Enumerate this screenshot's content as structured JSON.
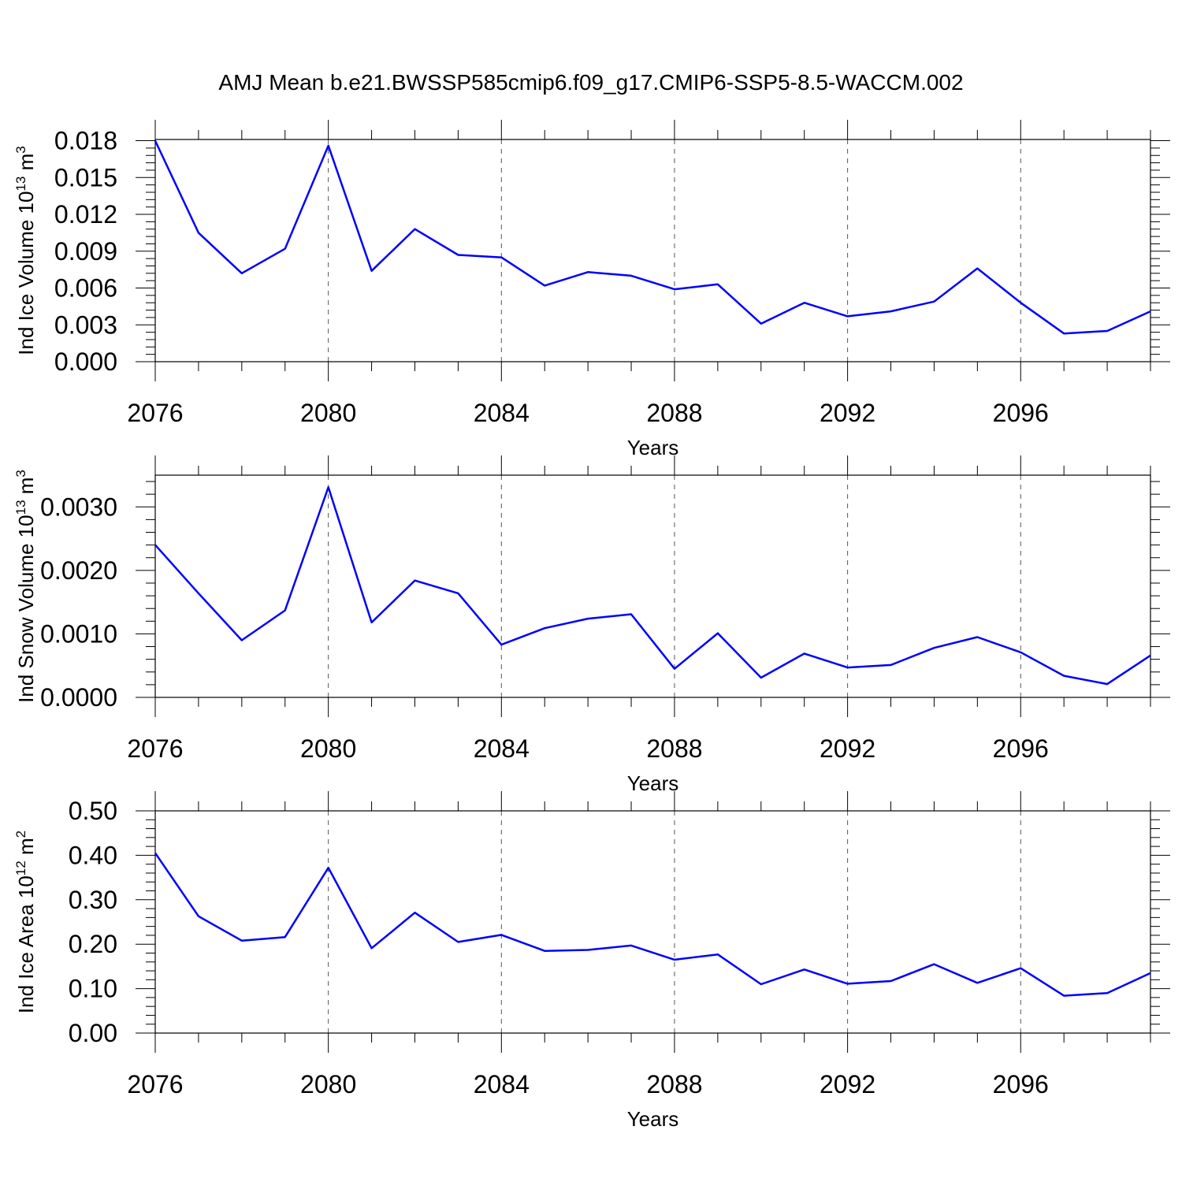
{
  "title": "AMJ Mean b.e21.BWSSP585cmip6.f09_g17.CMIP6-SSP5-8.5-WACCM.002",
  "line_color": "#0000ff",
  "chart_data": [
    {
      "type": "line",
      "name": "ice-volume",
      "ylabel_main": "Ind Ice Volume 10",
      "ylabel_exp": "13",
      "ylabel_tail": " m",
      "ylabel_exp2": "3",
      "xlabel": "Years",
      "xlim": [
        2076,
        2099
      ],
      "ylim": [
        0.0,
        0.0181
      ],
      "x_ticks": [
        2076,
        2080,
        2084,
        2088,
        2092,
        2096
      ],
      "x_tick_labels": [
        "2076",
        "2080",
        "2084",
        "2088",
        "2092",
        "2096"
      ],
      "y_ticks": [
        0.0,
        0.003,
        0.006,
        0.009,
        0.012,
        0.015,
        0.018
      ],
      "y_tick_labels": [
        "0.000",
        "0.003",
        "0.006",
        "0.009",
        "0.012",
        "0.015",
        "0.018"
      ],
      "x": [
        2076,
        2077,
        2078,
        2079,
        2080,
        2081,
        2082,
        2083,
        2084,
        2085,
        2086,
        2087,
        2088,
        2089,
        2090,
        2091,
        2092,
        2093,
        2094,
        2095,
        2096,
        2097,
        2098,
        2099
      ],
      "y": [
        0.018,
        0.0105,
        0.0072,
        0.0092,
        0.0176,
        0.0074,
        0.0108,
        0.0087,
        0.0085,
        0.0062,
        0.0073,
        0.007,
        0.0059,
        0.0063,
        0.0031,
        0.0048,
        0.0037,
        0.0041,
        0.0049,
        0.0076,
        0.0048,
        0.0023,
        0.0025,
        0.0041
      ]
    },
    {
      "type": "line",
      "name": "snow-volume",
      "ylabel_main": "Ind Snow Volume 10",
      "ylabel_exp": "13",
      "ylabel_tail": " m",
      "ylabel_exp2": "3",
      "xlabel": "Years",
      "xlim": [
        2076,
        2099
      ],
      "ylim": [
        0.0,
        0.0035
      ],
      "x_ticks": [
        2076,
        2080,
        2084,
        2088,
        2092,
        2096
      ],
      "x_tick_labels": [
        "2076",
        "2080",
        "2084",
        "2088",
        "2092",
        "2096"
      ],
      "y_ticks": [
        0.0,
        0.001,
        0.002,
        0.003
      ],
      "y_tick_labels": [
        "0.0000",
        "0.0010",
        "0.0020",
        "0.0030"
      ],
      "x": [
        2076,
        2077,
        2078,
        2079,
        2080,
        2081,
        2082,
        2083,
        2084,
        2085,
        2086,
        2087,
        2088,
        2089,
        2090,
        2091,
        2092,
        2093,
        2094,
        2095,
        2096,
        2097,
        2098,
        2099
      ],
      "y": [
        0.0024,
        0.00164,
        0.0009,
        0.00137,
        0.00331,
        0.00118,
        0.00184,
        0.00164,
        0.00083,
        0.00109,
        0.00124,
        0.00131,
        0.00045,
        0.00101,
        0.00031,
        0.00069,
        0.00047,
        0.00051,
        0.00078,
        0.00095,
        0.00071,
        0.00034,
        0.00021,
        0.00066
      ]
    },
    {
      "type": "line",
      "name": "ice-area",
      "ylabel_main": "Ind Ice Area 10",
      "ylabel_exp": "12",
      "ylabel_tail": " m",
      "ylabel_exp2": "2",
      "xlabel": "Years",
      "xlim": [
        2076,
        2099
      ],
      "ylim": [
        0.0,
        0.5
      ],
      "x_ticks": [
        2076,
        2080,
        2084,
        2088,
        2092,
        2096
      ],
      "x_tick_labels": [
        "2076",
        "2080",
        "2084",
        "2088",
        "2092",
        "2096"
      ],
      "y_ticks": [
        0.0,
        0.1,
        0.2,
        0.3,
        0.4,
        0.5
      ],
      "y_tick_labels": [
        "0.00",
        "0.10",
        "0.20",
        "0.30",
        "0.40",
        "0.50"
      ],
      "x": [
        2076,
        2077,
        2078,
        2079,
        2080,
        2081,
        2082,
        2083,
        2084,
        2085,
        2086,
        2087,
        2088,
        2089,
        2090,
        2091,
        2092,
        2093,
        2094,
        2095,
        2096,
        2097,
        2098,
        2099
      ],
      "y": [
        0.405,
        0.263,
        0.208,
        0.216,
        0.372,
        0.191,
        0.271,
        0.205,
        0.221,
        0.185,
        0.187,
        0.197,
        0.165,
        0.177,
        0.11,
        0.143,
        0.111,
        0.117,
        0.155,
        0.113,
        0.146,
        0.084,
        0.09,
        0.135
      ]
    }
  ]
}
